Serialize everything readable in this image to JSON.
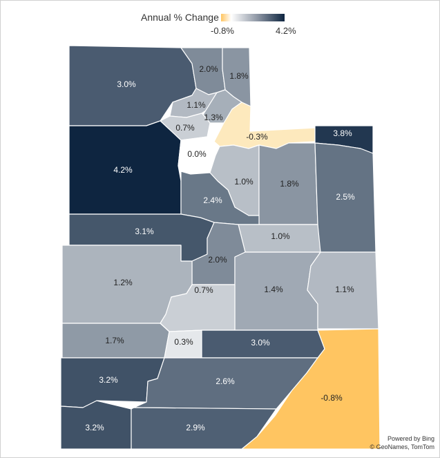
{
  "legend": {
    "title": "Annual % Change",
    "min_label": "-0.8%",
    "max_label": "4.2%",
    "min_value": -0.8,
    "max_value": 4.2,
    "colors": {
      "low": "#ffc561",
      "zero": "#ffffff",
      "high": "#0e2540"
    }
  },
  "attribution": {
    "line1": "Powered by Bing",
    "line2": "© GeoNames, TomTom"
  },
  "chart_data": {
    "type": "choropleth",
    "value_unit": "%",
    "regions": [
      {
        "id": "box-elder",
        "value": 3.0,
        "label": "3.0%"
      },
      {
        "id": "cache",
        "value": 2.0,
        "label": "2.0%"
      },
      {
        "id": "rich",
        "value": 1.8,
        "label": "1.8%"
      },
      {
        "id": "weber",
        "value": 1.1,
        "label": "1.1%"
      },
      {
        "id": "morgan",
        "value": 1.3,
        "label": "1.3%"
      },
      {
        "id": "davis",
        "value": 0.7,
        "label": "0.7%"
      },
      {
        "id": "summit",
        "value": -0.3,
        "label": "-0.3%"
      },
      {
        "id": "daggett",
        "value": 3.8,
        "label": "3.8%"
      },
      {
        "id": "tooele",
        "value": 4.2,
        "label": "4.2%"
      },
      {
        "id": "salt-lake",
        "value": 0.0,
        "label": "0.0%"
      },
      {
        "id": "wasatch",
        "value": 1.0,
        "label": "1.0%"
      },
      {
        "id": "duchesne",
        "value": 1.8,
        "label": "1.8%"
      },
      {
        "id": "uintah",
        "value": 2.5,
        "label": "2.5%"
      },
      {
        "id": "utah",
        "value": 2.4,
        "label": "2.4%"
      },
      {
        "id": "juab",
        "value": 3.1,
        "label": "3.1%"
      },
      {
        "id": "carbon",
        "value": 1.0,
        "label": "1.0%"
      },
      {
        "id": "sanpete",
        "value": 2.0,
        "label": "2.0%"
      },
      {
        "id": "millard",
        "value": 1.2,
        "label": "1.2%"
      },
      {
        "id": "emery",
        "value": 1.4,
        "label": "1.4%"
      },
      {
        "id": "grand",
        "value": 1.1,
        "label": "1.1%"
      },
      {
        "id": "sevier",
        "value": 0.7,
        "label": "0.7%"
      },
      {
        "id": "beaver",
        "value": 1.7,
        "label": "1.7%"
      },
      {
        "id": "piute",
        "value": 0.3,
        "label": "0.3%"
      },
      {
        "id": "wayne",
        "value": 3.0,
        "label": "3.0%"
      },
      {
        "id": "iron",
        "value": 3.2,
        "label": "3.2%"
      },
      {
        "id": "garfield",
        "value": 2.6,
        "label": "2.6%"
      },
      {
        "id": "san-juan",
        "value": -0.8,
        "label": "-0.8%"
      },
      {
        "id": "washington",
        "value": 3.2,
        "label": "3.2%"
      },
      {
        "id": "kane",
        "value": 2.9,
        "label": "2.9%"
      }
    ]
  }
}
